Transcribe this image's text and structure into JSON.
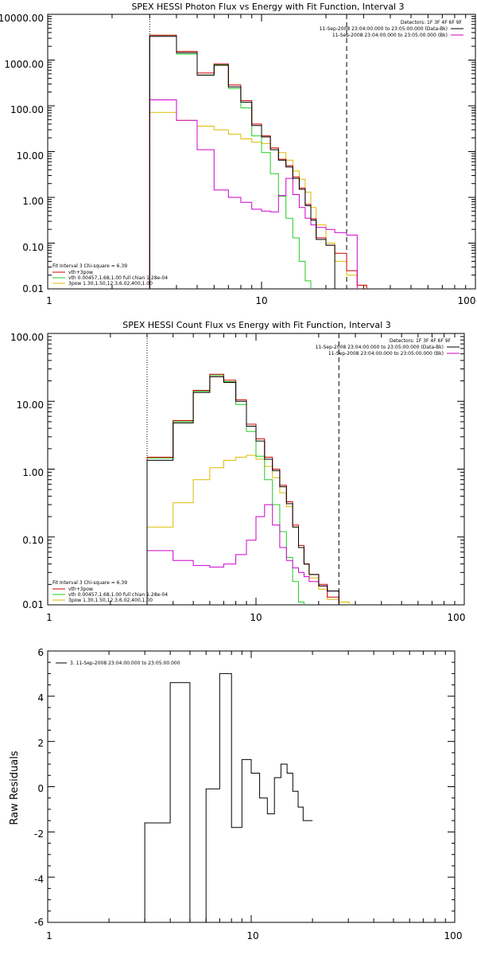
{
  "colors": {
    "data": "#000000",
    "background_sub": "#cc00cc",
    "total": "#cc0000",
    "thermal": "#22cc22",
    "power_law": "#ddbb00"
  },
  "chart_data": [
    {
      "type": "line",
      "title": "SPEX HESSI Photon Flux vs Energy with Fit Function, Interval 3",
      "xlabel": "",
      "ylabel": "",
      "xscale": "log",
      "yscale": "log",
      "xlim": [
        1,
        100
      ],
      "ylim": [
        0.01,
        10000
      ],
      "xticks": [
        "1",
        "10",
        "100"
      ],
      "yticks": [
        "10000.00",
        "1000.00",
        "100.00",
        "10.00",
        "1.00",
        "0.10",
        "0.01"
      ],
      "vlines": [
        {
          "x": 3,
          "style": "dotted"
        },
        {
          "x": 25,
          "style": "dashed"
        }
      ],
      "header_text": [
        "Detectors: 1F 3F 4F 6F 9F",
        "11-Sep-2008 23:04:00.000 to 23:05:00.000 (Data-Bk)",
        "11-Sep-2008 23:04:00.000 to 23:05:00.000 (Bk)"
      ],
      "legend_text": [
        "Fit Interval 3   Chi-square = 6.39",
        "vth+3pow",
        "vth 0.00457,1.68,1.00  full chian 1.28e-04",
        "3pow 1.30,1.50,12.3,6.02,400,1.00"
      ],
      "bin_edges": [
        3,
        4,
        5,
        6,
        7,
        8,
        9,
        10,
        11,
        12,
        13,
        14,
        15,
        16,
        17,
        18,
        20,
        22,
        25,
        28,
        31,
        35,
        40
      ],
      "series": [
        {
          "key": "data",
          "values": [
            3300,
            1450,
            470,
            770,
            260,
            120,
            37,
            21,
            11,
            6.5,
            4.6,
            2.6,
            1.5,
            0.66,
            0.32,
            0.12,
            0.09
          ]
        },
        {
          "key": "background_sub",
          "values": [
            135,
            48,
            11,
            1.45,
            1.0,
            0.78,
            0.55,
            0.5,
            0.48,
            1.1,
            2.6,
            1.15,
            0.6,
            0.35,
            0.25,
            0.22,
            0.2,
            0.17,
            0.15
          ]
        },
        {
          "key": "total",
          "values": [
            3500,
            1550,
            520,
            830,
            285,
            130,
            40,
            22,
            12,
            6.8,
            4.9,
            2.8,
            1.6,
            0.7,
            0.34,
            0.13,
            0.09,
            0.06,
            0.025,
            0.012
          ]
        },
        {
          "key": "thermal",
          "values": [
            3500,
            1350,
            470,
            790,
            240,
            90,
            22,
            9.5,
            3.3,
            1.05,
            0.35,
            0.13,
            0.04,
            0.015
          ]
        },
        {
          "key": "power_law",
          "values": [
            72,
            48,
            36,
            30,
            24,
            19,
            16,
            15,
            12,
            9.5,
            6.5,
            3.8,
            2.5,
            1.3,
            0.6,
            0.25,
            0.1,
            0.04,
            0.02,
            0.012
          ]
        }
      ]
    },
    {
      "type": "line",
      "title": "SPEX HESSI Count Flux vs Energy with Fit Function, Interval 3",
      "xlabel": "",
      "ylabel": "",
      "xscale": "log",
      "yscale": "log",
      "xlim": [
        1,
        100
      ],
      "ylim": [
        0.01,
        100
      ],
      "xticks": [
        "1",
        "10",
        "100"
      ],
      "yticks": [
        "100.00",
        "10.00",
        "1.00",
        "0.10",
        "0.01"
      ],
      "vlines": [
        {
          "x": 3,
          "style": "dotted"
        },
        {
          "x": 25,
          "style": "dashed"
        }
      ],
      "header_text": [
        "Detectors: 1F 3F 4F 6F 9F",
        "11-Sep-2008 23:04:00.000 to 23:05:00.000 (Data-Bk)",
        "11-Sep-2008 23:04:00.000 to 23:05:00.000 (Bk)"
      ],
      "legend_text": [
        "Fit Interval 3   Chi-square = 6.39",
        "vth+3pow",
        "vth 0.00457,1.68,1.00  full chian 1.28e-04",
        "3pow 1.30,1.50,12.3,6.02,400,1.00"
      ],
      "bin_edges": [
        3,
        4,
        5,
        6,
        7,
        8,
        9,
        10,
        11,
        12,
        13,
        14,
        15,
        16,
        17,
        18,
        20,
        22,
        25,
        28
      ],
      "series": [
        {
          "key": "data",
          "values": [
            1.35,
            4.8,
            13.5,
            23,
            19,
            10,
            4.3,
            2.6,
            1.4,
            0.95,
            0.55,
            0.31,
            0.14,
            0.07,
            0.04,
            0.028,
            0.019,
            0.016
          ]
        },
        {
          "key": "background_sub",
          "values": [
            0.063,
            0.045,
            0.038,
            0.036,
            0.04,
            0.055,
            0.09,
            0.2,
            0.3,
            0.15,
            0.07,
            0.045,
            0.035,
            0.03,
            0.026,
            0.022,
            0.019,
            0.016
          ]
        },
        {
          "key": "total",
          "values": [
            1.5,
            5.2,
            14.5,
            25,
            20.5,
            10.5,
            4.6,
            2.8,
            1.5,
            1.0,
            0.58,
            0.33,
            0.15,
            0.075,
            0.04,
            0.028,
            0.02,
            0.013
          ]
        },
        {
          "key": "thermal",
          "values": [
            1.45,
            5.0,
            14,
            24,
            19.5,
            9,
            3.6,
            1.55,
            0.7,
            0.3,
            0.12,
            0.05,
            0.022,
            0.011
          ]
        },
        {
          "key": "power_law",
          "values": [
            0.14,
            0.32,
            0.7,
            1.05,
            1.35,
            1.5,
            1.6,
            1.4,
            1.1,
            0.75,
            0.45,
            0.28,
            0.14,
            0.07,
            0.04,
            0.025,
            0.017,
            0.012,
            0.011
          ]
        }
      ]
    },
    {
      "type": "line",
      "title": "",
      "xlabel": "",
      "ylabel": "Raw Residuals",
      "xscale": "log",
      "yscale": "linear",
      "xlim": [
        1,
        100
      ],
      "ylim": [
        -6,
        6
      ],
      "xticks": [
        "1",
        "10",
        "100"
      ],
      "yticks": [
        "6",
        "4",
        "2",
        "0",
        "-2",
        "-4",
        "-6"
      ],
      "legend_text": [
        "3. 11-Sep-2008 23:04:00.000 to 23:05:00.000"
      ],
      "bin_edges": [
        3,
        4,
        5,
        6,
        7,
        8,
        9,
        10,
        11,
        12,
        13,
        14,
        15,
        16,
        17,
        18,
        20,
        22,
        25
      ],
      "series": [
        {
          "key": "data",
          "values": [
            -1.6,
            4.6,
            -6.1,
            -0.1,
            5.0,
            -1.8,
            1.2,
            0.6,
            -0.5,
            -1.2,
            0.4,
            1.0,
            0.6,
            -0.2,
            -0.9,
            -1.5
          ]
        }
      ]
    }
  ]
}
